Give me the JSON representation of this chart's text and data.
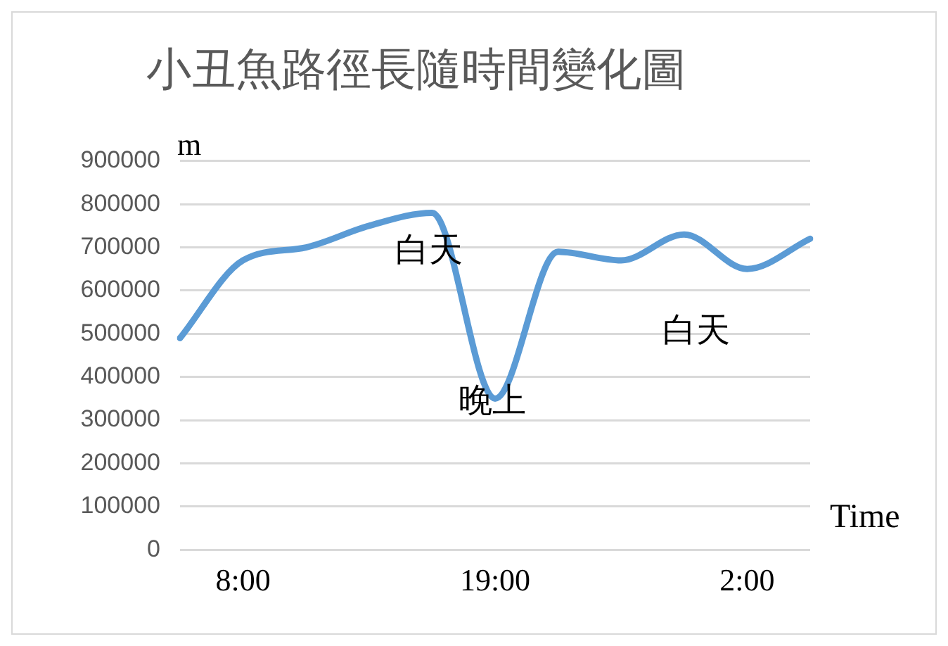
{
  "chart_data": {
    "type": "line",
    "title": "小丑魚路徑長隨時間變化圖",
    "xlabel": "Time",
    "ylabel": "m",
    "categories": [
      null,
      "8:00",
      null,
      null,
      null,
      "19:00",
      null,
      null,
      null,
      "2:00",
      null
    ],
    "series": [
      {
        "color": "#5b9bd5",
        "values": [
          490000,
          670000,
          700000,
          750000,
          780000,
          350000,
          690000,
          670000,
          730000,
          650000,
          720000
        ]
      }
    ],
    "ylim": [
      0,
      900000
    ],
    "yticks": [
      0,
      100000,
      200000,
      300000,
      400000,
      500000,
      600000,
      700000,
      800000,
      900000
    ],
    "grid": "y",
    "marker": "none",
    "line_style": "solid",
    "annotations": [
      "白天",
      "晚上",
      "白天"
    ]
  }
}
